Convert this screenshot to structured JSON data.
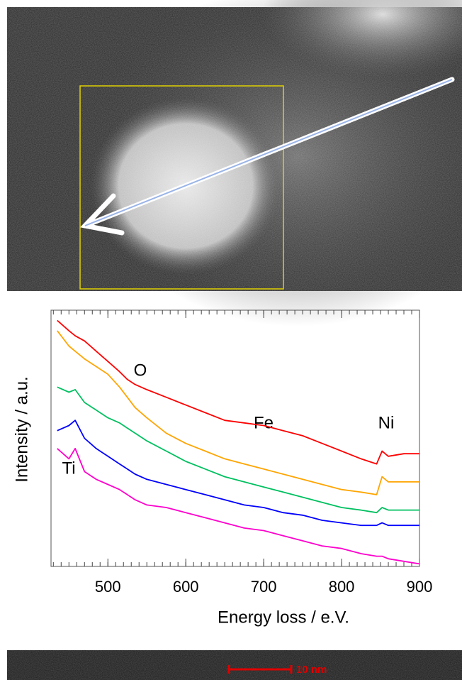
{
  "image": {
    "scale_bar": "10 nm"
  },
  "chart_data": {
    "type": "line",
    "x_label": "Energy loss / e.V.",
    "y_label": "Intensity / a.u.",
    "annotations": [
      "O",
      "Fe",
      "Ni",
      "Ti"
    ],
    "x": [
      435,
      450,
      458,
      470,
      485,
      500,
      515,
      525,
      535,
      550,
      575,
      600,
      625,
      650,
      675,
      700,
      725,
      750,
      775,
      800,
      825,
      845,
      852,
      860,
      880,
      900
    ],
    "series": [
      {
        "color": "#ff0000",
        "values": [
          96,
          92,
          90,
          88,
          84,
          80,
          76,
          73,
          71,
          69,
          66,
          63,
          60,
          57,
          56,
          55,
          53,
          51,
          48,
          45,
          42,
          40,
          45,
          43,
          44,
          44
        ]
      },
      {
        "color": "#ffa500",
        "values": [
          92,
          86,
          84,
          81,
          78,
          75,
          70,
          66,
          62,
          58,
          52,
          48,
          45,
          42,
          40,
          38,
          36,
          34,
          32,
          30,
          29,
          28,
          35,
          33,
          33,
          33
        ]
      },
      {
        "color": "#00c060",
        "values": [
          70,
          68,
          69,
          64,
          61,
          58,
          56,
          54,
          52,
          49,
          45,
          41,
          38,
          35,
          33,
          31,
          29,
          27,
          25,
          23,
          22,
          21,
          23,
          22,
          22,
          22
        ]
      },
      {
        "color": "#0000ff",
        "values": [
          53,
          55,
          57,
          50,
          46,
          43,
          40,
          38,
          36,
          34,
          32,
          30,
          28,
          26,
          24,
          23,
          21,
          20,
          18,
          17,
          16,
          16,
          17,
          16,
          16,
          16
        ]
      },
      {
        "color": "#ff00cc",
        "values": [
          46,
          42,
          46,
          37,
          34,
          32,
          30,
          28,
          26,
          24,
          23,
          21,
          19,
          17,
          15,
          14,
          12,
          10,
          8,
          7,
          5,
          4,
          4,
          3,
          2,
          1
        ]
      }
    ],
    "xlim": [
      427,
      900
    ],
    "xticks": [
      500,
      600,
      700,
      800,
      900
    ],
    "ylim": [
      0,
      100
    ],
    "grid": false
  }
}
